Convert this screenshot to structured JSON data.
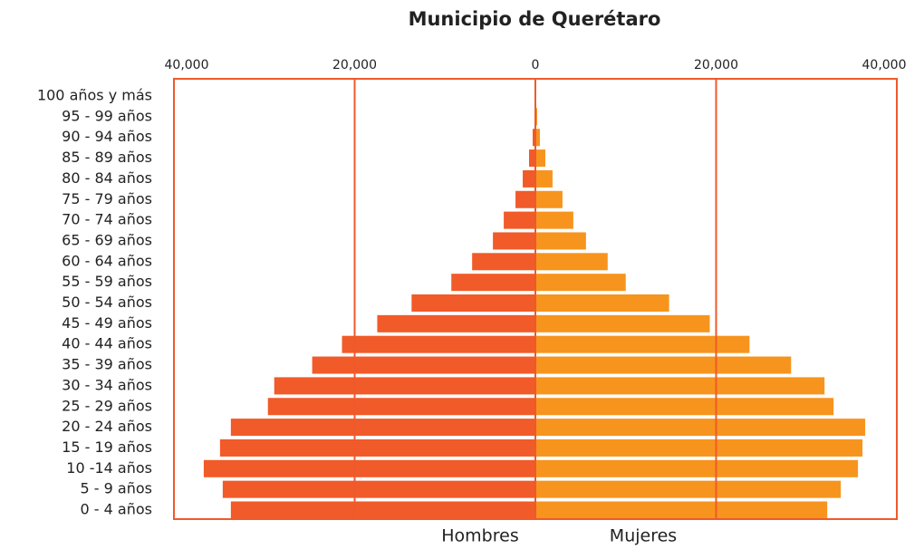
{
  "chart_data": {
    "type": "pyramid",
    "title": "Municipio de Querétaro",
    "categories": [
      "100 años y más",
      "95 - 99 años",
      "90 - 94 años",
      "85 - 89 años",
      "80 - 84 años",
      "75 - 79 años",
      "70 - 74 años",
      "65 - 69 años",
      "60 - 64 años",
      "55 - 59 años",
      "50 - 54 años",
      "45 - 49 años",
      "40 - 44 años",
      "35 - 39 años",
      "30 - 34 años",
      "25 - 29 años",
      "20 - 24 años",
      "15 - 19 años",
      "10 -14 años",
      "5 - 9 años",
      "0 - 4 años"
    ],
    "series": [
      {
        "name": "Hombres",
        "color": "#f15a29",
        "values": [
          100,
          100,
          300,
          700,
          1400,
          2200,
          3500,
          4700,
          7000,
          9300,
          13700,
          17500,
          21400,
          24700,
          28900,
          29600,
          33700,
          34900,
          36700,
          34600,
          33700
        ]
      },
      {
        "name": "Mujeres",
        "color": "#f7941d",
        "values": [
          100,
          200,
          500,
          1100,
          1900,
          3000,
          4200,
          5600,
          8000,
          10000,
          14800,
          19300,
          23700,
          28300,
          32000,
          33000,
          36500,
          36200,
          35700,
          33800,
          32300
        ]
      }
    ],
    "xlim": [
      -40000,
      40000
    ],
    "xticks": [
      {
        "value": -40000,
        "label": "40,000"
      },
      {
        "value": -20000,
        "label": "20,000"
      },
      0,
      {
        "value": 20000,
        "label": "20,000"
      },
      {
        "value": 40000,
        "label": "40,000"
      }
    ],
    "grid": true,
    "grid_color": "#ef5a2c"
  }
}
